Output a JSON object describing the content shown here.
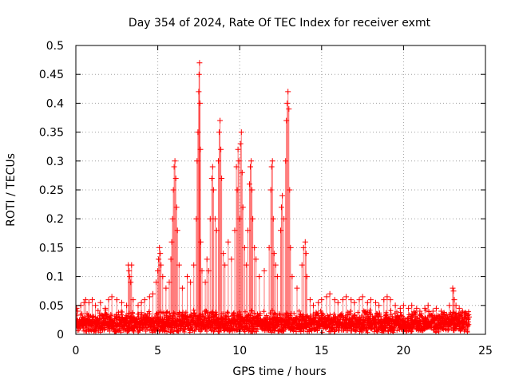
{
  "chart_data": {
    "type": "scatter",
    "title": "Day 354 of 2024, Rate Of TEC Index for receiver exmt",
    "xlabel": "GPS time / hours",
    "ylabel": "ROTI / TECUs",
    "xlim": [
      0,
      25
    ],
    "ylim": [
      0,
      0.5
    ],
    "xticks": [
      "0",
      "5",
      "10",
      "15",
      "20",
      "25"
    ],
    "yticks": [
      "0",
      "0.05",
      "0.1",
      "0.15",
      "0.2",
      "0.25",
      "0.3",
      "0.35",
      "0.4",
      "0.45",
      "0.5"
    ],
    "grid": true,
    "marker": "plus",
    "series_color": "#ff0000",
    "background_band": {
      "x_start": 0,
      "x_end": 24,
      "typical_max": 0.035
    },
    "series": [
      {
        "name": "ROTI",
        "points": [
          [
            0.05,
            0.045
          ],
          [
            0.1,
            0.04
          ],
          [
            0.3,
            0.05
          ],
          [
            0.5,
            0.055
          ],
          [
            0.6,
            0.06
          ],
          [
            0.8,
            0.055
          ],
          [
            1.0,
            0.06
          ],
          [
            1.2,
            0.05
          ],
          [
            1.5,
            0.055
          ],
          [
            1.8,
            0.045
          ],
          [
            2.0,
            0.06
          ],
          [
            2.2,
            0.065
          ],
          [
            2.5,
            0.06
          ],
          [
            2.8,
            0.055
          ],
          [
            3.1,
            0.05
          ],
          [
            3.2,
            0.12
          ],
          [
            3.25,
            0.11
          ],
          [
            3.3,
            0.1
          ],
          [
            3.35,
            0.09
          ],
          [
            3.4,
            0.12
          ],
          [
            3.5,
            0.06
          ],
          [
            3.8,
            0.05
          ],
          [
            4.0,
            0.055
          ],
          [
            4.2,
            0.06
          ],
          [
            4.5,
            0.065
          ],
          [
            4.7,
            0.07
          ],
          [
            4.9,
            0.09
          ],
          [
            5.0,
            0.11
          ],
          [
            5.05,
            0.13
          ],
          [
            5.1,
            0.15
          ],
          [
            5.15,
            0.14
          ],
          [
            5.2,
            0.12
          ],
          [
            5.3,
            0.1
          ],
          [
            5.5,
            0.08
          ],
          [
            5.7,
            0.09
          ],
          [
            5.8,
            0.13
          ],
          [
            5.85,
            0.16
          ],
          [
            5.9,
            0.2
          ],
          [
            5.95,
            0.25
          ],
          [
            6.0,
            0.29
          ],
          [
            6.05,
            0.3
          ],
          [
            6.1,
            0.27
          ],
          [
            6.15,
            0.22
          ],
          [
            6.2,
            0.18
          ],
          [
            6.3,
            0.12
          ],
          [
            6.5,
            0.08
          ],
          [
            6.8,
            0.1
          ],
          [
            7.0,
            0.09
          ],
          [
            7.2,
            0.12
          ],
          [
            7.35,
            0.2
          ],
          [
            7.4,
            0.3
          ],
          [
            7.45,
            0.35
          ],
          [
            7.5,
            0.42
          ],
          [
            7.52,
            0.45
          ],
          [
            7.55,
            0.47
          ],
          [
            7.58,
            0.4
          ],
          [
            7.6,
            0.32
          ],
          [
            7.62,
            0.16
          ],
          [
            7.7,
            0.11
          ],
          [
            7.9,
            0.09
          ],
          [
            8.0,
            0.13
          ],
          [
            8.1,
            0.11
          ],
          [
            8.2,
            0.2
          ],
          [
            8.3,
            0.27
          ],
          [
            8.35,
            0.29
          ],
          [
            8.4,
            0.25
          ],
          [
            8.5,
            0.2
          ],
          [
            8.6,
            0.18
          ],
          [
            8.7,
            0.3
          ],
          [
            8.75,
            0.35
          ],
          [
            8.8,
            0.37
          ],
          [
            8.85,
            0.32
          ],
          [
            8.9,
            0.27
          ],
          [
            9.0,
            0.14
          ],
          [
            9.1,
            0.12
          ],
          [
            9.3,
            0.16
          ],
          [
            9.5,
            0.13
          ],
          [
            9.7,
            0.18
          ],
          [
            9.8,
            0.29
          ],
          [
            9.85,
            0.25
          ],
          [
            9.9,
            0.32
          ],
          [
            9.95,
            0.3
          ],
          [
            10.0,
            0.2
          ],
          [
            10.05,
            0.33
          ],
          [
            10.1,
            0.35
          ],
          [
            10.15,
            0.28
          ],
          [
            10.2,
            0.22
          ],
          [
            10.3,
            0.15
          ],
          [
            10.4,
            0.12
          ],
          [
            10.5,
            0.18
          ],
          [
            10.6,
            0.26
          ],
          [
            10.65,
            0.29
          ],
          [
            10.7,
            0.3
          ],
          [
            10.75,
            0.25
          ],
          [
            10.8,
            0.2
          ],
          [
            10.9,
            0.15
          ],
          [
            11.0,
            0.13
          ],
          [
            11.2,
            0.1
          ],
          [
            11.5,
            0.11
          ],
          [
            11.8,
            0.15
          ],
          [
            11.9,
            0.25
          ],
          [
            11.95,
            0.29
          ],
          [
            12.0,
            0.3
          ],
          [
            12.05,
            0.2
          ],
          [
            12.1,
            0.14
          ],
          [
            12.2,
            0.12
          ],
          [
            12.3,
            0.1
          ],
          [
            12.5,
            0.18
          ],
          [
            12.55,
            0.22
          ],
          [
            12.6,
            0.24
          ],
          [
            12.7,
            0.2
          ],
          [
            12.8,
            0.3
          ],
          [
            12.85,
            0.37
          ],
          [
            12.9,
            0.4
          ],
          [
            12.95,
            0.42
          ],
          [
            13.0,
            0.39
          ],
          [
            13.05,
            0.25
          ],
          [
            13.1,
            0.15
          ],
          [
            13.2,
            0.1
          ],
          [
            13.5,
            0.08
          ],
          [
            13.8,
            0.12
          ],
          [
            13.9,
            0.15
          ],
          [
            14.0,
            0.16
          ],
          [
            14.05,
            0.14
          ],
          [
            14.1,
            0.1
          ],
          [
            14.3,
            0.06
          ],
          [
            14.5,
            0.05
          ],
          [
            14.8,
            0.055
          ],
          [
            15.0,
            0.06
          ],
          [
            15.3,
            0.065
          ],
          [
            15.5,
            0.07
          ],
          [
            15.8,
            0.06
          ],
          [
            16.0,
            0.055
          ],
          [
            16.3,
            0.06
          ],
          [
            16.5,
            0.065
          ],
          [
            16.8,
            0.06
          ],
          [
            17.0,
            0.055
          ],
          [
            17.3,
            0.06
          ],
          [
            17.5,
            0.065
          ],
          [
            17.8,
            0.055
          ],
          [
            18.0,
            0.06
          ],
          [
            18.3,
            0.055
          ],
          [
            18.5,
            0.05
          ],
          [
            18.8,
            0.06
          ],
          [
            19.0,
            0.065
          ],
          [
            19.2,
            0.06
          ],
          [
            19.5,
            0.05
          ],
          [
            19.8,
            0.045
          ],
          [
            20.0,
            0.05
          ],
          [
            20.3,
            0.045
          ],
          [
            20.5,
            0.05
          ],
          [
            20.8,
            0.045
          ],
          [
            21.0,
            0.04
          ],
          [
            21.3,
            0.045
          ],
          [
            21.5,
            0.05
          ],
          [
            21.8,
            0.04
          ],
          [
            22.0,
            0.045
          ],
          [
            22.3,
            0.04
          ],
          [
            22.5,
            0.035
          ],
          [
            22.8,
            0.05
          ],
          [
            23.0,
            0.08
          ],
          [
            23.05,
            0.075
          ],
          [
            23.1,
            0.06
          ],
          [
            23.2,
            0.05
          ],
          [
            23.4,
            0.045
          ],
          [
            23.6,
            0.04
          ],
          [
            23.8,
            0.035
          ],
          [
            24.0,
            0.03
          ]
        ]
      }
    ]
  }
}
